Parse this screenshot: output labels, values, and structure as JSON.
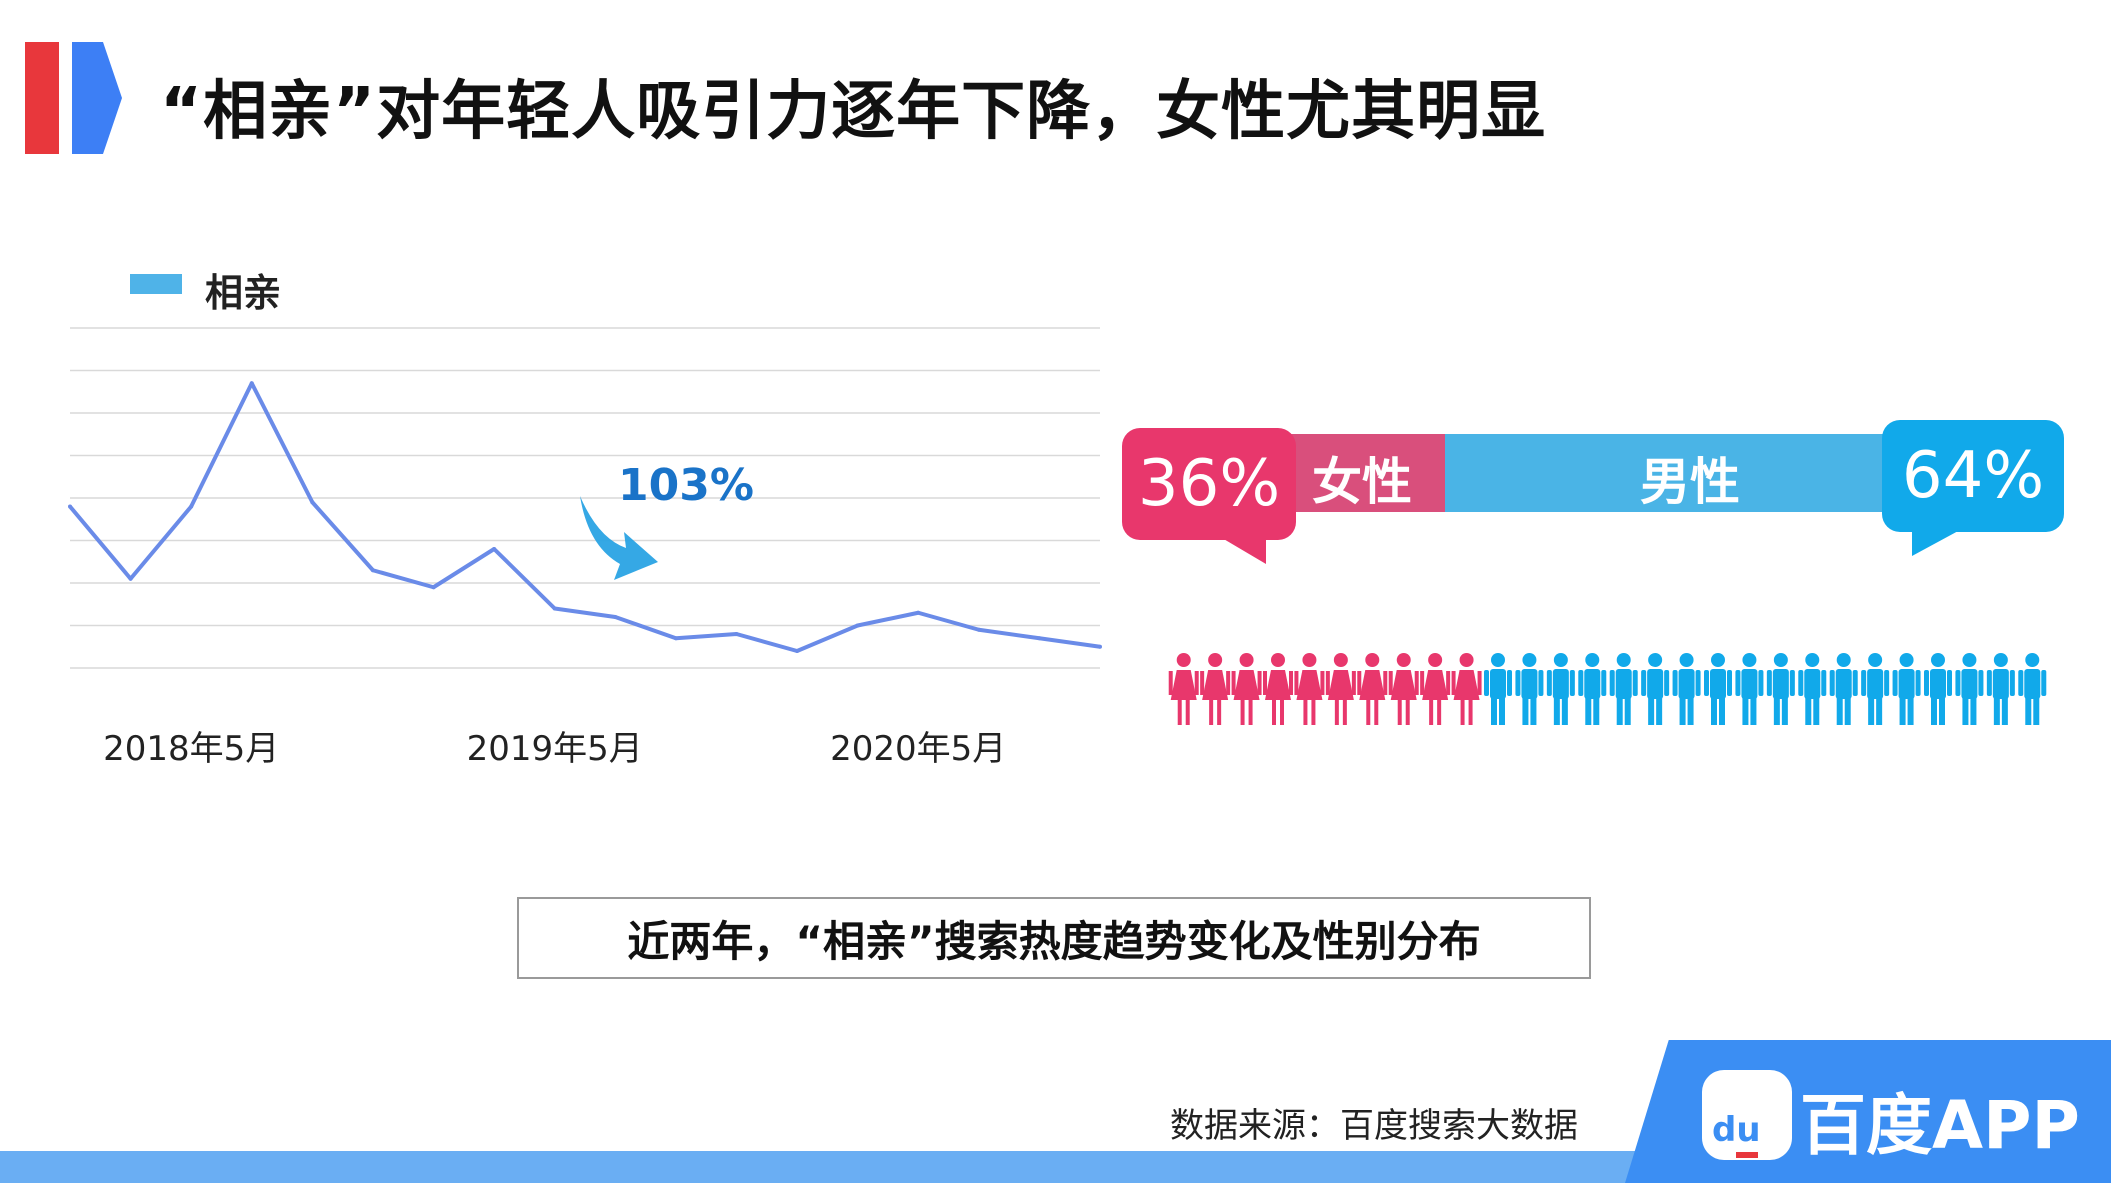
{
  "header": {
    "title": "“相亲”对年轻人吸引力逐年下降，女性尤其明显"
  },
  "legend": {
    "label": "相亲",
    "color": "#4fb3e8"
  },
  "chart_data": {
    "type": "line",
    "x": [
      "2018-01",
      "2018-03",
      "2018-05",
      "2018-07",
      "2018-09",
      "2018-11",
      "2019-01",
      "2019-03",
      "2019-05",
      "2019-07",
      "2019-09",
      "2019-11",
      "2020-01",
      "2020-03",
      "2020-05",
      "2020-07",
      "2020-09",
      "2020-11"
    ],
    "series": [
      {
        "name": "相亲",
        "values": [
          38,
          21,
          38,
          67,
          39,
          23,
          19,
          28,
          14,
          12,
          7,
          8,
          4,
          10,
          13,
          9,
          7,
          5
        ],
        "color": "#6a8be8"
      }
    ],
    "ylim": [
      0,
      80
    ],
    "tick_labels": [
      "2018年5月",
      "2019年5月",
      "2020年5月"
    ],
    "grid": true,
    "legend": "top-left",
    "annotation": {
      "text": "103%",
      "color": "#1a73c8",
      "arrow_color": "#2aa3e4"
    }
  },
  "gender": {
    "female_label": "女性",
    "male_label": "男性",
    "female_percent_text": "36%",
    "male_percent_text": "64%",
    "female_share": 0.36,
    "male_share": 0.64,
    "female_color": "#e8376c",
    "male_color": "#11a9ea",
    "people_total": 28,
    "female_count": 10
  },
  "caption": {
    "text": "近两年，“相亲”搜索热度趋势变化及性别分布"
  },
  "footer": {
    "source": "数据来源：百度搜索大数据",
    "logo_mark_text": "du",
    "brand": "百度APP"
  }
}
